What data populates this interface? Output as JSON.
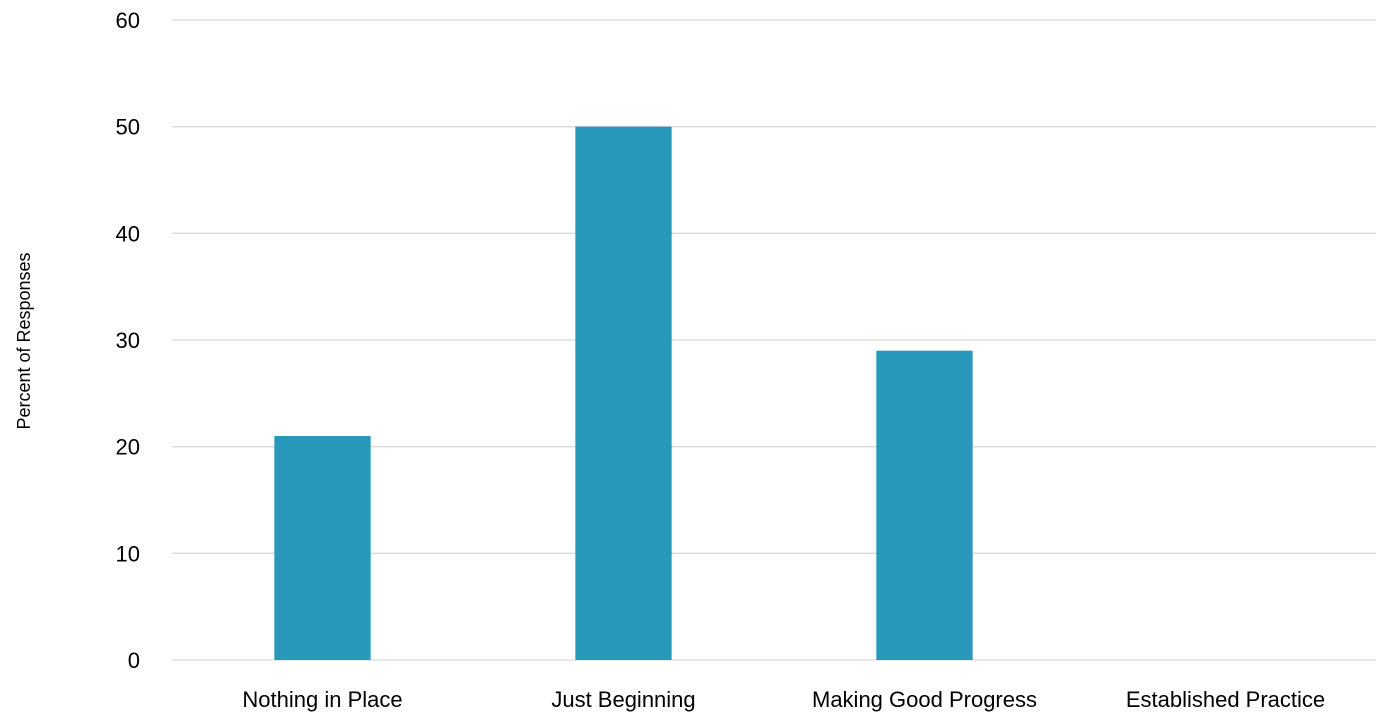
{
  "chart_data": {
    "type": "bar",
    "categories": [
      "Nothing in Place",
      "Just Beginning",
      "Making Good Progress",
      "Established Practice"
    ],
    "values": [
      21,
      50,
      29,
      0
    ],
    "title": "",
    "xlabel": "",
    "ylabel": "Percent of Responses",
    "ylim": [
      0,
      60
    ],
    "yticks": [
      0,
      10,
      20,
      30,
      40,
      50,
      60
    ],
    "grid": true,
    "legend": "none",
    "bar_color": "#2899bb",
    "gridline_color": "#d9d9d9"
  }
}
